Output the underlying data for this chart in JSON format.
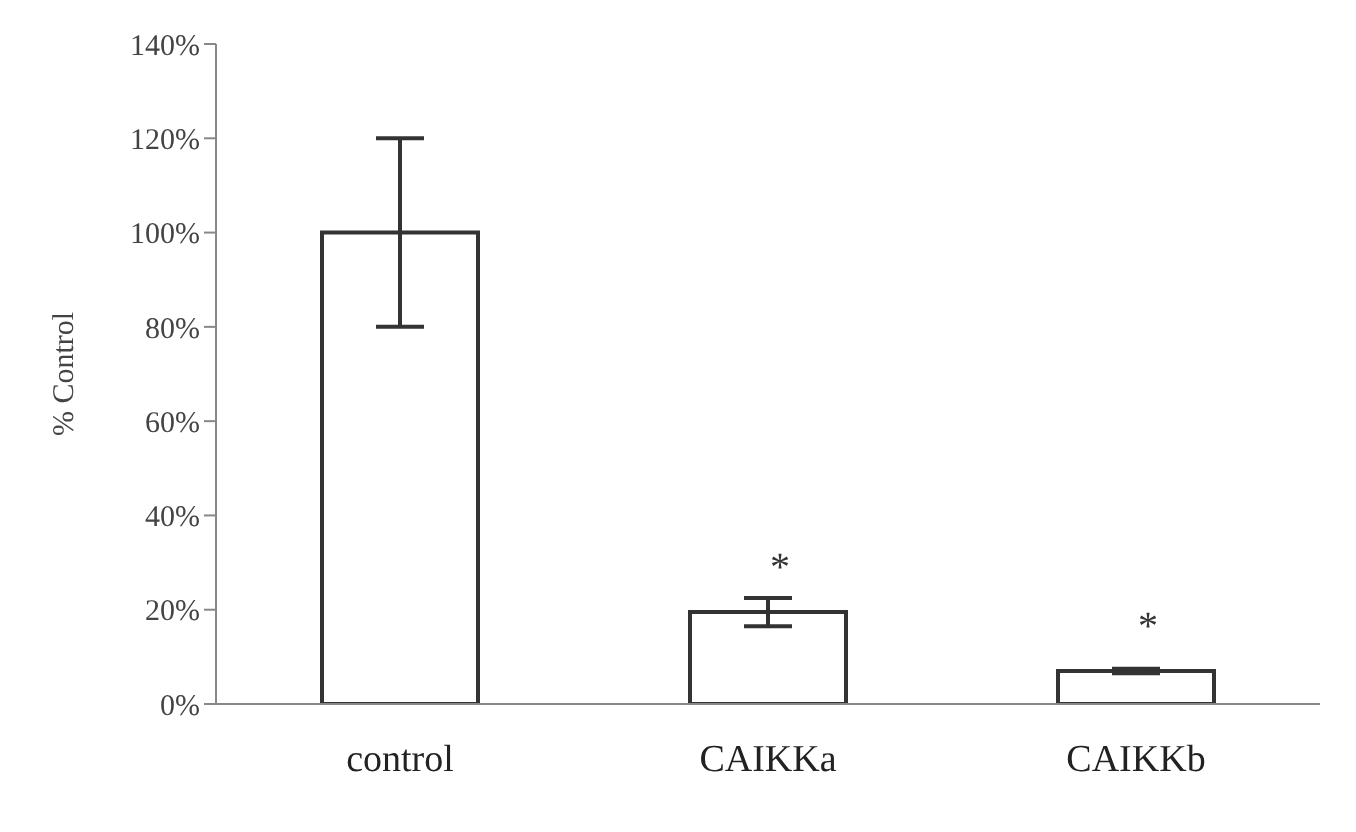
{
  "chart_data": {
    "type": "bar",
    "ylabel": "% Control",
    "categories": [
      "control",
      "CAIKKa",
      "CAIKKb"
    ],
    "values": [
      100,
      19.5,
      7
    ],
    "errors": [
      20,
      3,
      0.5
    ],
    "color": "#ffffff",
    "ylim": [
      0,
      140
    ],
    "yticks": [
      {
        "value": 0,
        "label": "0%"
      },
      {
        "value": 20,
        "label": "20%"
      },
      {
        "value": 40,
        "label": "40%"
      },
      {
        "value": 60,
        "label": "60%"
      },
      {
        "value": 80,
        "label": "80%"
      },
      {
        "value": 100,
        "label": "100%"
      },
      {
        "value": 120,
        "label": "120%"
      },
      {
        "value": 140,
        "label": "140%"
      }
    ],
    "annotations": [
      {
        "text": "*",
        "x": "CAIKKa",
        "y": 19.5
      },
      {
        "text": "*",
        "x": "CAIKKb",
        "y": 7
      }
    ],
    "grid": false,
    "legend": false
  }
}
